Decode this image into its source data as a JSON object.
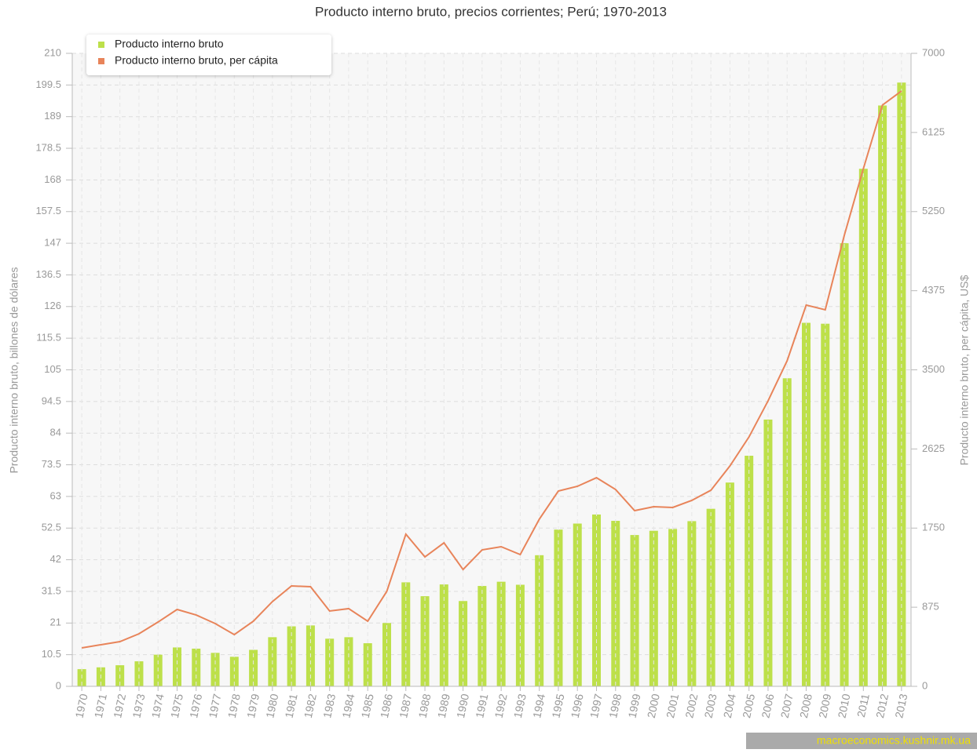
{
  "chart_data": {
    "type": "bar",
    "title": "Producto interno bruto, precios corrientes; Perú; 1970-2013",
    "ylabel": "Producto interno bruto, billones de dólares",
    "y2label": "Producto interno bruto, per cápita, US$",
    "categories": [
      "1970",
      "1971",
      "1972",
      "1973",
      "1974",
      "1975",
      "1976",
      "1977",
      "1978",
      "1979",
      "1980",
      "1981",
      "1982",
      "1983",
      "1984",
      "1985",
      "1986",
      "1987",
      "1988",
      "1989",
      "1990",
      "1991",
      "1992",
      "1993",
      "1994",
      "1995",
      "1996",
      "1997",
      "1998",
      "1999",
      "2000",
      "2001",
      "2002",
      "2003",
      "2004",
      "2005",
      "2006",
      "2007",
      "2008",
      "2009",
      "2010",
      "2011",
      "2012",
      "2013"
    ],
    "series": [
      {
        "name": "Producto interno bruto",
        "type": "bar",
        "color": "#bde04a",
        "axis": "y",
        "values": [
          5.7,
          6.3,
          7.0,
          8.3,
          10.5,
          12.9,
          12.5,
          11.1,
          9.8,
          12.1,
          16.3,
          19.9,
          20.2,
          15.8,
          16.3,
          14.3,
          21.0,
          34.5,
          29.9,
          33.8,
          28.3,
          33.3,
          34.7,
          33.7,
          43.5,
          52.0,
          54.0,
          57.0,
          54.9,
          50.2,
          51.6,
          52.2,
          54.8,
          58.9,
          67.6,
          76.5,
          88.5,
          102.2,
          120.6,
          120.3,
          147.0,
          171.7,
          192.7,
          200.3
        ]
      },
      {
        "name": "Producto interno bruto, per cápita",
        "type": "line",
        "color": "#e8845a",
        "axis": "y2",
        "values": [
          425,
          460,
          494,
          581,
          711,
          850,
          789,
          694,
          572,
          720,
          937,
          1110,
          1102,
          833,
          859,
          720,
          1050,
          1683,
          1431,
          1587,
          1292,
          1509,
          1544,
          1457,
          1848,
          2160,
          2212,
          2307,
          2177,
          1943,
          1986,
          1978,
          2056,
          2168,
          2437,
          2758,
          3157,
          3600,
          4216,
          4164,
          4988,
          5725,
          6428,
          6584
        ]
      }
    ],
    "ylim": [
      0,
      210
    ],
    "yticks": [
      0,
      10.5,
      21,
      31.5,
      42,
      52.5,
      63,
      73.5,
      84,
      94.5,
      105,
      115.5,
      126,
      136.5,
      147,
      157.5,
      168,
      178.5,
      189,
      199.5,
      210
    ],
    "y2lim": [
      0,
      7000
    ],
    "y2ticks": [
      0,
      875,
      1750,
      2625,
      3500,
      4375,
      5250,
      6125,
      7000
    ],
    "grid": true,
    "legend": "upper left",
    "watermark": "macroeconomics.kushnir.mk.ua"
  }
}
